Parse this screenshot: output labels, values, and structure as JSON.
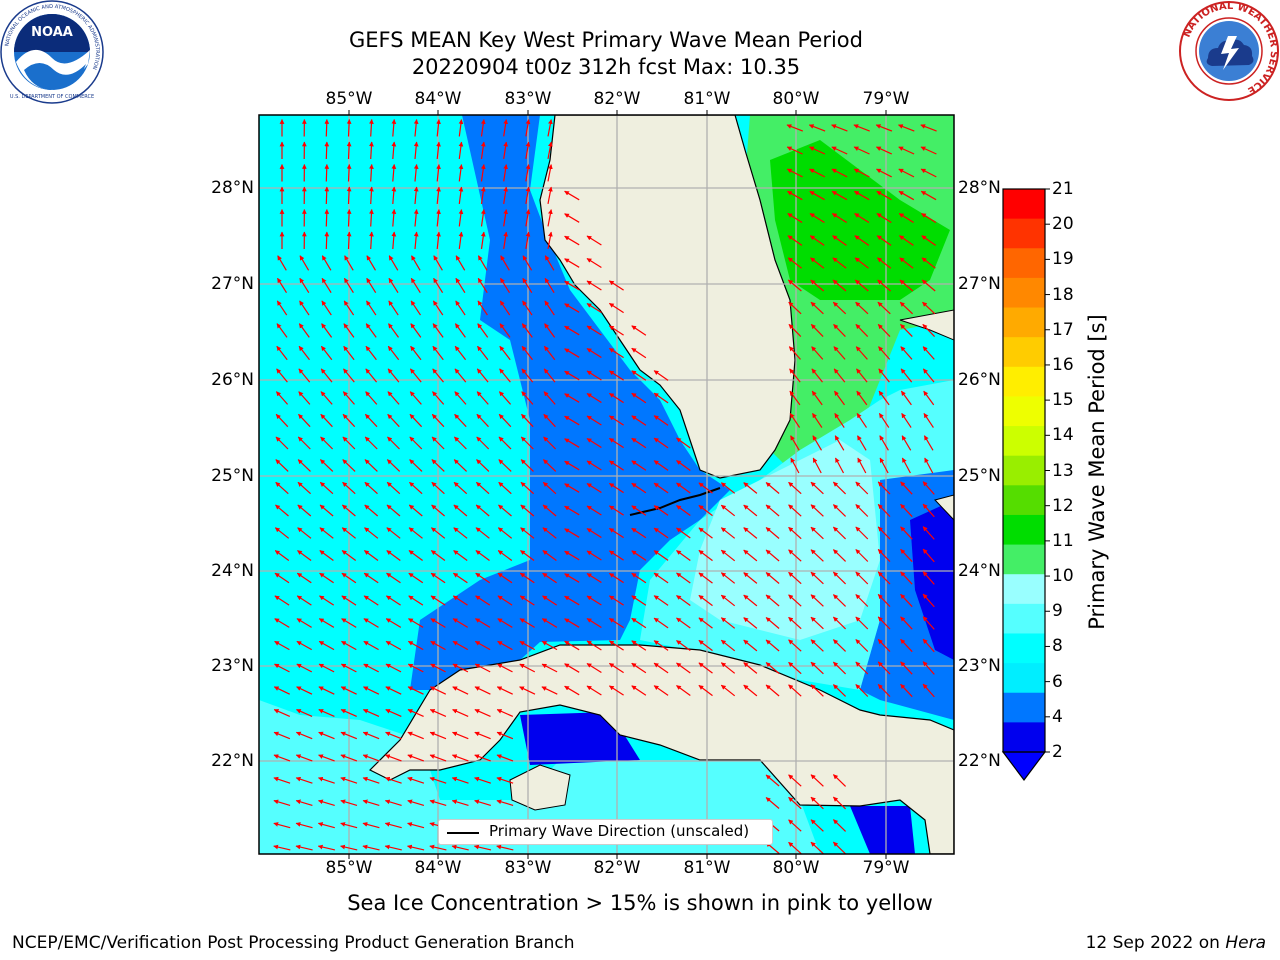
{
  "header": {
    "title_line1": "GEFS MEAN Key West Primary Wave Mean Period",
    "title_line2": "20220904 t00z 312h fcst   Max: 10.35"
  },
  "logos": {
    "noaa_text": "NOAA",
    "noaa_ring_text": "NATIONAL OCEANIC AND ATMOSPHERIC ADMINISTRATION",
    "noaa_bottom_text": "U.S. DEPARTMENT OF COMMERCE",
    "nws_ring_text": "NATIONAL WEATHER SERVICE"
  },
  "axes": {
    "lon_ticks": [
      "85°W",
      "84°W",
      "83°W",
      "82°W",
      "81°W",
      "80°W",
      "79°W"
    ],
    "lat_ticks": [
      "28°N",
      "27°N",
      "26°N",
      "25°N",
      "24°N",
      "23°N",
      "22°N"
    ]
  },
  "colorbar": {
    "label": "Primary Wave Mean Period [s]",
    "ticks": [
      "21",
      "20",
      "19",
      "18",
      "17",
      "16",
      "15",
      "14",
      "13",
      "12",
      "11",
      "10",
      "9",
      "8",
      "6",
      "4",
      "2"
    ],
    "colors": [
      "#ff0000",
      "#ff3300",
      "#ff6600",
      "#ff8800",
      "#ffaa00",
      "#ffcc00",
      "#ffee00",
      "#eeff00",
      "#ccff00",
      "#99ee00",
      "#55dd00",
      "#00dd00",
      "#44ee66",
      "#99ffff",
      "#55ffff",
      "#00ffff",
      "#00eeff",
      "#0077ff",
      "#0000ee"
    ],
    "extend_color": "#0000ff"
  },
  "legend": {
    "label": "Primary Wave Direction (unscaled)"
  },
  "caption": "Sea Ice Concentration > 15% is shown in pink to yellow",
  "footer": {
    "left": "NCEP/EMC/Verification Post Processing Product Generation Branch",
    "right_date": "12 Sep 2022 on ",
    "right_machine": "Hera"
  },
  "colors": {
    "ocean_base": "#00ffff",
    "period_4_6": "#00eeff",
    "period_2_4": "#0077ff",
    "period_below_2": "#0000ee",
    "period_6_8": "#55ffff",
    "period_8_9": "#99ffff",
    "period_9_10": "#44ee66",
    "period_10_11": "#00dd00",
    "land": "#efefdf",
    "arrow": "#ff0000",
    "grid": "#b0b0b0"
  }
}
